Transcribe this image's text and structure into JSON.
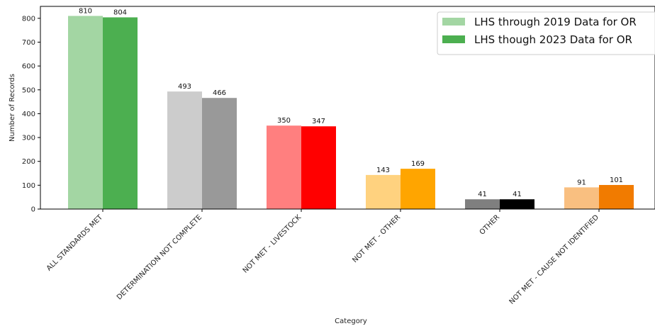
{
  "chart_data": {
    "type": "bar",
    "title": "",
    "xlabel": "Category",
    "ylabel": "Number of Records",
    "ylim": [
      0,
      850
    ],
    "yticks": [
      0,
      100,
      200,
      300,
      400,
      500,
      600,
      700,
      800
    ],
    "grid": false,
    "legend_position": "top-right",
    "categories": [
      "ALL STANDARDS MET",
      "DETERMINATION NOT COMPLETE",
      "NOT MET - LIVESTOCK",
      "NOT MET - OTHER",
      "OTHER",
      "NOT MET - CAUSE NOT IDENTIFIED"
    ],
    "series": [
      {
        "name": "LHS through 2019 Data for OR",
        "values": [
          810,
          493,
          350,
          143,
          41,
          91
        ],
        "colors": [
          "#a3d6a3",
          "#cccccc",
          "#ff7f7f",
          "#ffd27f",
          "#7f7f7f",
          "#f9bf80"
        ],
        "legend_color": "#a3d6a3"
      },
      {
        "name": "LHS though 2023 Data for OR",
        "values": [
          804,
          466,
          347,
          169,
          41,
          101
        ],
        "colors": [
          "#4caf50",
          "#999999",
          "#ff0000",
          "#ffa500",
          "#000000",
          "#f17b00"
        ],
        "legend_color": "#4caf50"
      }
    ]
  }
}
